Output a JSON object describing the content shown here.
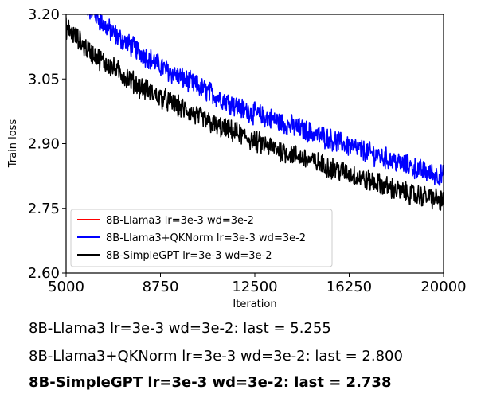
{
  "chart_data": {
    "type": "line",
    "title": "",
    "xlabel": "Iteration",
    "ylabel": "Train loss",
    "xlim": [
      5000,
      20000
    ],
    "ylim": [
      2.6,
      3.2
    ],
    "xticks": [
      "5000",
      "8750",
      "12500",
      "16250",
      "20000"
    ],
    "yticks": [
      "2.60",
      "2.75",
      "2.90",
      "3.05",
      "3.20"
    ],
    "grid": false,
    "legend_position": "bottom-left",
    "series": [
      {
        "name": "8B-Llama3 lr=3e-3 wd=3e-2",
        "color": "#ff0000",
        "x": [],
        "y": []
      },
      {
        "name": "8B-Llama3+QKNorm lr=3e-3 wd=3e-2",
        "color": "#0000ff",
        "x": [
          5000,
          5500,
          6000,
          6500,
          7000,
          7500,
          8000,
          8500,
          9000,
          9500,
          10000,
          10500,
          11000,
          11500,
          12000,
          12500,
          13000,
          13500,
          14000,
          14500,
          15000,
          15500,
          16000,
          16500,
          17000,
          17500,
          18000,
          18500,
          19000,
          19500,
          20000
        ],
        "y": [
          3.28,
          3.245,
          3.21,
          3.175,
          3.15,
          3.13,
          3.11,
          3.09,
          3.07,
          3.055,
          3.04,
          3.025,
          3.01,
          2.995,
          2.98,
          2.97,
          2.96,
          2.95,
          2.94,
          2.93,
          2.92,
          2.91,
          2.9,
          2.89,
          2.88,
          2.87,
          2.86,
          2.85,
          2.84,
          2.83,
          2.825
        ]
      },
      {
        "name": "8B-SimpleGPT lr=3e-3 wd=3e-2",
        "color": "#000000",
        "x": [
          5000,
          5500,
          6000,
          6500,
          7000,
          7500,
          8000,
          8500,
          9000,
          9500,
          10000,
          10500,
          11000,
          11500,
          12000,
          12500,
          13000,
          13500,
          14000,
          14500,
          15000,
          15500,
          16000,
          16500,
          17000,
          17500,
          18000,
          18500,
          19000,
          19500,
          20000
        ],
        "y": [
          3.17,
          3.14,
          3.11,
          3.09,
          3.07,
          3.05,
          3.03,
          3.015,
          3.0,
          2.985,
          2.97,
          2.955,
          2.94,
          2.93,
          2.92,
          2.905,
          2.895,
          2.885,
          2.875,
          2.865,
          2.855,
          2.845,
          2.835,
          2.825,
          2.815,
          2.805,
          2.795,
          2.785,
          2.78,
          2.775,
          2.765
        ]
      }
    ]
  },
  "captions": [
    "8B-Llama3 lr=3e-3 wd=3e-2: last = 5.255",
    "8B-Llama3+QKNorm lr=3e-3 wd=3e-2: last = 2.800",
    "8B-SimpleGPT lr=3e-3 wd=3e-2: last = 2.738"
  ]
}
